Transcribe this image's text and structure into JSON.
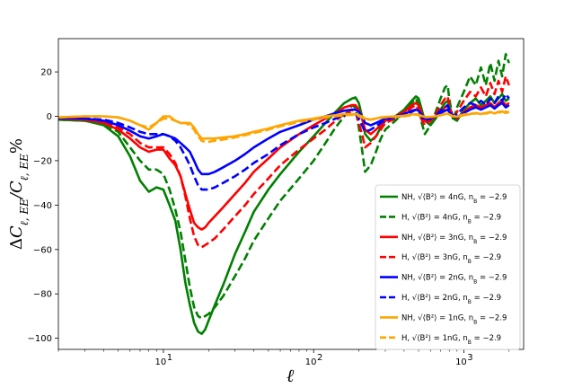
{
  "chart_data": {
    "type": "line",
    "title": "",
    "xlabel": "ℓ",
    "ylabel": "ΔC_{ℓ,EE}/C_{ℓ,EE}%",
    "xscale": "log",
    "xlim": [
      2,
      2500
    ],
    "ylim": [
      -105,
      35
    ],
    "yticks": [
      20,
      0,
      -20,
      -40,
      -60,
      -80,
      -100
    ],
    "ytick_labels": [
      "20",
      "0",
      "−20",
      "−40",
      "−60",
      "−80",
      "−100"
    ],
    "xticks": [
      10,
      100,
      1000
    ],
    "xtick_labels": [
      "10",
      "10",
      "10"
    ],
    "xtick_exponents": [
      "1",
      "2",
      "3"
    ],
    "grid": false,
    "legend_position": "lower-right",
    "series": [
      {
        "name": "NH, √⟨B²⟩ = 4nG, n_B = −2.9",
        "legend_main": "NH, √⟨B²⟩ = 4nG, n",
        "legend_sub": "B",
        "legend_tail": " = −2.9",
        "color": "#008000",
        "dash": "solid",
        "x": [
          2,
          3,
          4,
          5,
          6,
          7,
          8,
          9,
          10,
          11,
          12,
          13,
          14,
          15,
          16,
          17,
          18,
          19,
          20,
          22,
          25,
          30,
          35,
          40,
          50,
          60,
          80,
          100,
          120,
          140,
          160,
          180,
          190,
          200,
          210,
          220,
          240,
          260,
          280,
          300,
          350,
          400,
          450,
          480,
          500,
          520,
          550,
          600,
          650,
          700,
          750,
          780,
          800,
          850,
          900,
          1000,
          1100,
          1200,
          1300,
          1400,
          1500,
          1600,
          1700,
          1800,
          1900,
          2000
        ],
        "y": [
          -1.5,
          -2,
          -4,
          -9,
          -18,
          -29,
          -34,
          -32,
          -33,
          -40,
          -47,
          -60,
          -75,
          -85,
          -93,
          -97,
          -98,
          -96,
          -92,
          -85,
          -76,
          -62,
          -52,
          -43,
          -33,
          -26,
          -16,
          -9,
          -3,
          2,
          6,
          8,
          8.5,
          6,
          0,
          -8,
          -11,
          -9,
          -5,
          -2,
          0,
          3,
          7,
          9,
          8,
          4,
          -2,
          -4,
          -1,
          3,
          6,
          7,
          5,
          -1,
          -2,
          3,
          6,
          8,
          5,
          7,
          9,
          6,
          8,
          10,
          7,
          8
        ]
      },
      {
        "name": "H, √⟨B²⟩ = 4nG, n_B = −2.9",
        "legend_main": "H, √⟨B²⟩ = 4nG, n",
        "legend_sub": "B",
        "legend_tail": " = −2.9",
        "color": "#008000",
        "dash": "dashed",
        "x": [
          2,
          3,
          4,
          5,
          6,
          7,
          8,
          9,
          10,
          11,
          12,
          13,
          14,
          15,
          16,
          17,
          18,
          19,
          20,
          22,
          25,
          30,
          35,
          40,
          50,
          60,
          80,
          100,
          120,
          140,
          160,
          180,
          190,
          200,
          210,
          220,
          240,
          260,
          280,
          300,
          350,
          400,
          450,
          480,
          500,
          520,
          550,
          600,
          650,
          700,
          750,
          780,
          800,
          850,
          900,
          1000,
          1100,
          1200,
          1300,
          1400,
          1500,
          1600,
          1700,
          1800,
          1900,
          2000
        ],
        "y": [
          -1.5,
          -2,
          -3.5,
          -7,
          -14,
          -20,
          -24,
          -24,
          -26,
          -33,
          -42,
          -52,
          -65,
          -77,
          -86,
          -90,
          -91,
          -90,
          -89,
          -86,
          -81,
          -72,
          -64,
          -56,
          -46,
          -38,
          -28,
          -20,
          -12,
          -5,
          0,
          5,
          4,
          -5,
          -15,
          -25,
          -22,
          -16,
          -10,
          -6,
          -2,
          2,
          6,
          8,
          5,
          -2,
          -8,
          -4,
          2,
          8,
          13,
          14,
          8,
          -2,
          4,
          11,
          18,
          14,
          22,
          14,
          24,
          16,
          25,
          18,
          28,
          24
        ]
      },
      {
        "name": "NH, √⟨B²⟩ = 3nG, n_B = −2.9",
        "legend_main": "NH, √⟨B²⟩ = 3nG, n",
        "legend_sub": "B",
        "legend_tail": " = −2.9",
        "color": "#ff0000",
        "dash": "solid",
        "x": [
          2,
          3,
          4,
          5,
          6,
          7,
          8,
          9,
          10,
          11,
          12,
          13,
          14,
          15,
          16,
          17,
          18,
          19,
          20,
          22,
          25,
          30,
          35,
          40,
          50,
          60,
          80,
          100,
          120,
          140,
          160,
          180,
          190,
          200,
          210,
          220,
          240,
          260,
          280,
          300,
          350,
          400,
          450,
          480,
          500,
          520,
          550,
          600,
          650,
          700,
          750,
          780,
          800,
          850,
          900,
          1000,
          1100,
          1200,
          1300,
          1400,
          1500,
          1600,
          1700,
          1800,
          1900,
          2000
        ],
        "y": [
          -1,
          -1.5,
          -3,
          -6,
          -10,
          -14,
          -16,
          -15,
          -15,
          -19,
          -22,
          -27,
          -35,
          -42,
          -48,
          -50,
          -51,
          -50,
          -48,
          -45,
          -41,
          -35,
          -30,
          -25,
          -19,
          -14,
          -8,
          -4,
          -1,
          1.5,
          4,
          5,
          5,
          3,
          -1,
          -6,
          -8,
          -6,
          -4,
          -2,
          0,
          2,
          5,
          6,
          5,
          2,
          -2,
          -2,
          0,
          2,
          4,
          5,
          3,
          0,
          -1,
          2,
          4,
          5,
          4,
          5,
          6,
          4,
          6,
          7,
          5,
          6
        ]
      },
      {
        "name": "H, √⟨B²⟩ = 3nG, n_B = −2.9",
        "legend_main": "H, √⟨B²⟩ = 3nG, n",
        "legend_sub": "B",
        "legend_tail": " = −2.9",
        "color": "#ff0000",
        "dash": "dashed",
        "x": [
          2,
          3,
          4,
          5,
          6,
          7,
          8,
          9,
          10,
          11,
          12,
          13,
          14,
          15,
          16,
          17,
          18,
          19,
          20,
          22,
          25,
          30,
          35,
          40,
          50,
          60,
          80,
          100,
          120,
          140,
          160,
          180,
          190,
          200,
          210,
          220,
          240,
          260,
          280,
          300,
          350,
          400,
          450,
          480,
          500,
          520,
          550,
          600,
          650,
          700,
          750,
          780,
          800,
          850,
          900,
          1000,
          1100,
          1200,
          1300,
          1400,
          1500,
          1600,
          1700,
          1800,
          1900,
          2000
        ],
        "y": [
          -1,
          -1.5,
          -2.5,
          -5,
          -8,
          -12,
          -14,
          -14,
          -14,
          -17,
          -21,
          -27,
          -36,
          -46,
          -54,
          -58,
          -59,
          -58,
          -57,
          -55,
          -51,
          -45,
          -40,
          -35,
          -28,
          -22,
          -15,
          -10,
          -6,
          -2,
          1,
          3,
          2,
          -3,
          -8,
          -14,
          -12,
          -9,
          -6,
          -3,
          -1,
          1,
          4,
          5,
          3,
          -1,
          -4,
          -2,
          1,
          5,
          8,
          9,
          5,
          -1,
          2,
          7,
          11,
          9,
          13,
          9,
          15,
          10,
          16,
          11,
          18,
          14
        ]
      },
      {
        "name": "NH, √⟨B²⟩ = 2nG, n_B = −2.9",
        "legend_main": "NH, √⟨B²⟩ = 2nG, n",
        "legend_sub": "B",
        "legend_tail": " = −2.9",
        "color": "#0000ff",
        "dash": "solid",
        "x": [
          2,
          3,
          4,
          5,
          6,
          7,
          8,
          9,
          10,
          11,
          12,
          13,
          14,
          15,
          16,
          17,
          18,
          19,
          20,
          22,
          25,
          30,
          35,
          40,
          50,
          60,
          80,
          100,
          120,
          140,
          160,
          180,
          190,
          200,
          210,
          220,
          240,
          260,
          280,
          300,
          350,
          400,
          450,
          480,
          500,
          520,
          550,
          600,
          650,
          700,
          750,
          780,
          800,
          850,
          900,
          1000,
          1100,
          1200,
          1300,
          1400,
          1500,
          1600,
          1700,
          1800,
          1900,
          2000
        ],
        "y": [
          -0.8,
          -1,
          -2,
          -4,
          -6.5,
          -9,
          -10,
          -9,
          -8,
          -9,
          -10,
          -12,
          -14,
          -16,
          -20,
          -24,
          -26,
          -26,
          -26,
          -25,
          -23,
          -20,
          -17,
          -14,
          -10,
          -7,
          -4,
          -1.5,
          0,
          1.5,
          2.5,
          3,
          3,
          2,
          0,
          -3,
          -4,
          -3,
          -2,
          -1,
          0,
          1,
          2.5,
          3,
          2.5,
          1,
          -1,
          -1,
          0,
          1.5,
          2.5,
          3,
          2,
          0,
          -0.5,
          1.5,
          3,
          4,
          3,
          4,
          5,
          3.5,
          5,
          6,
          4,
          5
        ]
      },
      {
        "name": "H, √⟨B²⟩ = 2nG, n_B = −2.9",
        "legend_main": "H, √⟨B²⟩ = 2nG, n",
        "legend_sub": "B",
        "legend_tail": " = −2.9",
        "color": "#0000ff",
        "dash": "dashed",
        "x": [
          2,
          3,
          4,
          5,
          6,
          7,
          8,
          9,
          10,
          11,
          12,
          13,
          14,
          15,
          16,
          17,
          18,
          19,
          20,
          22,
          25,
          30,
          35,
          40,
          50,
          60,
          80,
          100,
          120,
          140,
          160,
          180,
          190,
          200,
          210,
          220,
          240,
          260,
          280,
          300,
          350,
          400,
          450,
          480,
          500,
          520,
          550,
          600,
          650,
          700,
          750,
          780,
          800,
          850,
          900,
          1000,
          1100,
          1200,
          1300,
          1400,
          1500,
          1600,
          1700,
          1800,
          1900,
          2000
        ],
        "y": [
          -0.8,
          -1,
          -1.5,
          -3,
          -5,
          -7,
          -8,
          -8,
          -8,
          -9,
          -11,
          -14,
          -18,
          -22,
          -27,
          -31,
          -33,
          -33,
          -33,
          -32,
          -30,
          -27,
          -24,
          -21,
          -17,
          -13,
          -8,
          -5,
          -3,
          -1,
          0.5,
          1.5,
          1,
          -1,
          -4,
          -7,
          -6,
          -4.5,
          -3,
          -1.5,
          -0.5,
          0.5,
          2,
          3,
          2,
          0,
          -2,
          -1,
          0.5,
          2.5,
          4,
          5,
          3,
          0,
          1,
          4,
          6,
          5,
          7,
          5,
          8,
          6,
          9,
          7,
          10,
          8
        ]
      },
      {
        "name": "NH, √⟨B²⟩ = 1nG, n_B = −2.9",
        "legend_main": "NH, √⟨B²⟩ = 1nG, n",
        "legend_sub": "B",
        "legend_tail": " = −2.9",
        "color": "#ffa500",
        "dash": "solid",
        "x": [
          2,
          3,
          4,
          5,
          6,
          7,
          8,
          9,
          10,
          11,
          12,
          13,
          14,
          15,
          16,
          17,
          18,
          19,
          20,
          22,
          25,
          30,
          35,
          40,
          50,
          60,
          80,
          100,
          120,
          140,
          160,
          180,
          190,
          200,
          210,
          220,
          240,
          260,
          280,
          300,
          350,
          400,
          450,
          480,
          500,
          520,
          550,
          600,
          650,
          700,
          750,
          780,
          800,
          850,
          900,
          1000,
          1100,
          1200,
          1300,
          1400,
          1500,
          1600,
          1700,
          1800,
          1900,
          2000
        ],
        "y": [
          -0.5,
          0,
          0,
          -0.5,
          -2,
          -4,
          -6,
          -3,
          0,
          0,
          -2,
          -3,
          -3,
          -3,
          -5,
          -8,
          -10,
          -10,
          -10,
          -10,
          -9.5,
          -9,
          -8,
          -7,
          -5.5,
          -4,
          -2,
          -1,
          0,
          0.5,
          1,
          1,
          1,
          0.5,
          0,
          -1,
          -1.5,
          -1,
          -0.5,
          -0.3,
          0,
          0.3,
          0.8,
          1,
          0.8,
          0.3,
          -0.3,
          -0.3,
          0,
          0.5,
          1,
          1.2,
          0.8,
          0,
          -0.2,
          0.5,
          1,
          1.5,
          1,
          1.5,
          2,
          1.3,
          2,
          2.2,
          1.5,
          2
        ]
      },
      {
        "name": "H, √⟨B²⟩ = 1nG, n_B = −2.9",
        "legend_main": "H, √⟨B²⟩ = 1nG, n",
        "legend_sub": "B",
        "legend_tail": " = −2.9",
        "color": "#ffa500",
        "dash": "dashed",
        "x": [
          2,
          3,
          4,
          5,
          6,
          7,
          8,
          9,
          10,
          11,
          12,
          13,
          14,
          15,
          16,
          17,
          18,
          19,
          20,
          22,
          25,
          30,
          35,
          40,
          50,
          60,
          80,
          100,
          120,
          140,
          160,
          180,
          190,
          200,
          210,
          220,
          240,
          260,
          280,
          300,
          350,
          400,
          450,
          480,
          500,
          520,
          550,
          600,
          650,
          700,
          750,
          780,
          800,
          850,
          900,
          1000,
          1100,
          1200,
          1300,
          1400,
          1500,
          1600,
          1700,
          1800,
          1900,
          2000
        ],
        "y": [
          -0.5,
          0,
          0,
          -0.5,
          -2,
          -4,
          -5,
          -3,
          -1,
          -1,
          -2,
          -3,
          -3,
          -4,
          -6,
          -9,
          -11,
          -11.5,
          -11.5,
          -11,
          -10.5,
          -9.5,
          -8.5,
          -7.5,
          -6,
          -4.5,
          -2.5,
          -1.5,
          -0.5,
          0,
          0.5,
          0.7,
          0.5,
          0,
          -0.5,
          -1.5,
          -1.5,
          -1,
          -0.7,
          -0.4,
          -0.2,
          0,
          0.5,
          0.8,
          0.5,
          0,
          -0.5,
          -0.3,
          0,
          0.5,
          1,
          1.2,
          0.8,
          0,
          0.2,
          0.8,
          1.3,
          1.2,
          1.6,
          1.2,
          1.8,
          1.3,
          2,
          1.5,
          2.2,
          1.8
        ]
      }
    ]
  }
}
